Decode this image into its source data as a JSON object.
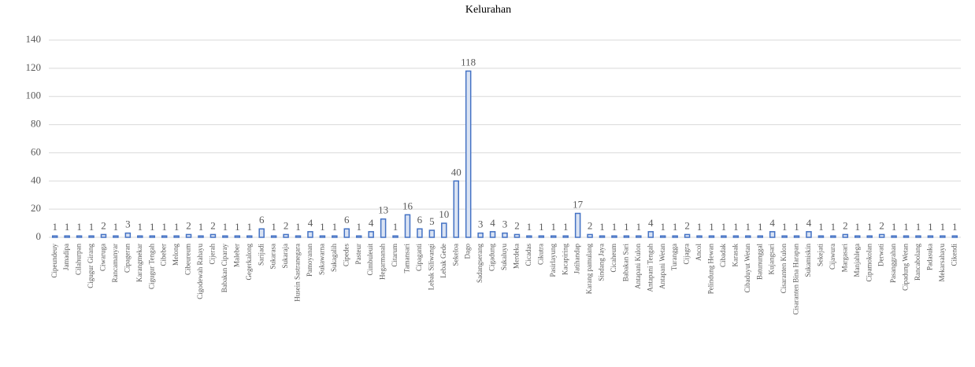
{
  "chart_data": {
    "type": "bar",
    "title": "Kelurahan",
    "categories": [
      "Cipeundeuy",
      "Jamadipa",
      "Cilahurpan",
      "Cigugur Girang",
      "Ciwaruga",
      "Rancamanyar",
      "Cipageran",
      "Karangmekar",
      "Cigugur Tengah",
      "Cibeber",
      "Melong",
      "Cibeureum",
      "Cigodewah Rahayu",
      "Cijerah",
      "Babakan Ciparay",
      "Maleber",
      "Gegerkalong",
      "Sarijadi",
      "Sukarasa",
      "Sukaraja",
      "Husein Sastranegara",
      "Pamoyanan",
      "Sukawarna",
      "Sukagalih",
      "Cipedes",
      "Pasteur",
      "Cimbuleuit",
      "Hegarmanah",
      "Citarum",
      "Tamansari",
      "Cipaganti",
      "Lebak Siliwangi",
      "Lebak Gede",
      "Sekeloa",
      "Dago",
      "Sadangserang",
      "Cigadung",
      "Sukaluyu",
      "Merdeka",
      "Cicadas",
      "Cikutra",
      "Pasirlayung",
      "Kacapiring",
      "Jatihandap",
      "Karang pamulang",
      "Sindang Jaya",
      "Cicaheum",
      "Babakan Sari",
      "Antapani Kulon",
      "Antapani Tengah",
      "Antapani Wetan",
      "Turangga",
      "Cijagra",
      "Ancol",
      "Pelindung Hewan",
      "Cibadak",
      "Karasak",
      "Cibaduyut Wetan",
      "Batununggal",
      "Kujangsari",
      "Cisaranten Kulon",
      "Cisaranten Bina Harapan",
      "Sukamiskin",
      "Sekejati",
      "Cijawura",
      "Margasari",
      "Manjahlega",
      "Cipamokolan",
      "Derwati",
      "Pasanggrahan",
      "Cipadung Wetan",
      "Rancabolang",
      "Padasuka",
      "Mekarsahayu",
      "Cikendi"
    ],
    "values": [
      1,
      1,
      1,
      1,
      2,
      1,
      3,
      1,
      1,
      1,
      1,
      2,
      1,
      2,
      1,
      1,
      1,
      6,
      1,
      2,
      1,
      4,
      1,
      1,
      6,
      1,
      4,
      13,
      1,
      16,
      6,
      5,
      10,
      40,
      118,
      3,
      4,
      3,
      2,
      1,
      1,
      1,
      1,
      17,
      2,
      1,
      1,
      1,
      1,
      4,
      1,
      1,
      2,
      1,
      1,
      1,
      1,
      1,
      1,
      4,
      1,
      1,
      4,
      1,
      1,
      2,
      1,
      1,
      2,
      1,
      1,
      1,
      1,
      1,
      1
    ],
    "color": "#4472c4",
    "fill": "#dae3f3",
    "ylim": [
      0,
      140
    ],
    "yticks": [
      0,
      20,
      40,
      60,
      80,
      100,
      120,
      140
    ],
    "grid": true
  }
}
